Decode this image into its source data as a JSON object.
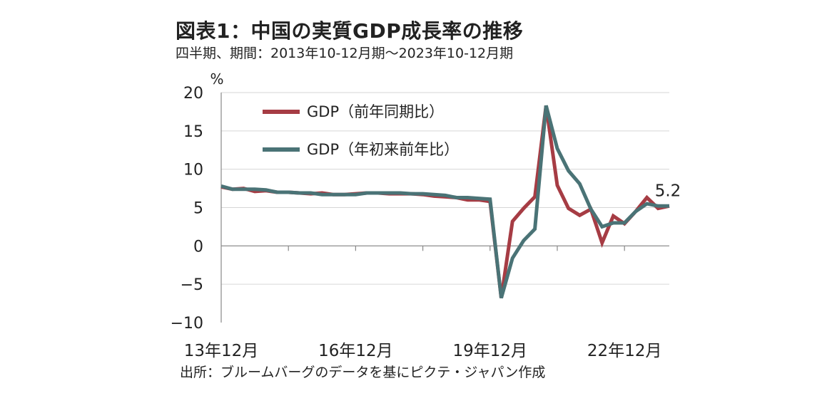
{
  "title": "図表1：中国の実質GDP成長率の推移",
  "subtitle": "四半期、期間：2013年10-12月期～2023年10-12月期",
  "source": "出所：ブルームバーグのデータを基にピクテ・ジャパン作成",
  "chart_data": {
    "type": "line",
    "yunit": "%",
    "ylim": [
      -10,
      20
    ],
    "yticks": [
      20,
      15,
      10,
      5,
      0,
      -5,
      -10
    ],
    "ytick_labels": [
      "20",
      "15",
      "10",
      "5",
      "0",
      "−5",
      "−10"
    ],
    "x": [
      "13Q4",
      "14Q1",
      "14Q2",
      "14Q3",
      "14Q4",
      "15Q1",
      "15Q2",
      "15Q3",
      "15Q4",
      "16Q1",
      "16Q2",
      "16Q3",
      "16Q4",
      "17Q1",
      "17Q2",
      "17Q3",
      "17Q4",
      "18Q1",
      "18Q2",
      "18Q3",
      "18Q4",
      "19Q1",
      "19Q2",
      "19Q3",
      "19Q4",
      "20Q1",
      "20Q2",
      "20Q3",
      "20Q4",
      "21Q1",
      "21Q2",
      "21Q3",
      "21Q4",
      "22Q1",
      "22Q2",
      "22Q3",
      "22Q4",
      "23Q1",
      "23Q2",
      "23Q3",
      "23Q4"
    ],
    "xtick_labels": [
      {
        "index": 0,
        "label": "13年12月"
      },
      {
        "index": 12,
        "label": "16年12月"
      },
      {
        "index": 24,
        "label": "19年12月"
      },
      {
        "index": 36,
        "label": "22年12月"
      }
    ],
    "grid": "horizontal",
    "legend_position": "top-left",
    "series": [
      {
        "name": "GDP（前年同期比）",
        "color": "#a63c44",
        "values": [
          7.7,
          7.4,
          7.5,
          7.1,
          7.2,
          7.0,
          7.0,
          6.9,
          6.8,
          6.9,
          6.7,
          6.7,
          6.8,
          6.9,
          6.9,
          6.8,
          6.8,
          6.8,
          6.7,
          6.5,
          6.4,
          6.3,
          6.0,
          6.0,
          5.8,
          -6.8,
          3.2,
          4.9,
          6.4,
          18.3,
          7.9,
          4.9,
          4.0,
          4.8,
          0.4,
          3.9,
          2.9,
          4.5,
          6.3,
          4.9,
          5.2
        ]
      },
      {
        "name": "GDP（年初来前年比）",
        "color": "#4a7376",
        "values": [
          7.8,
          7.4,
          7.4,
          7.4,
          7.3,
          7.0,
          7.0,
          6.9,
          6.9,
          6.7,
          6.7,
          6.7,
          6.7,
          6.9,
          6.9,
          6.9,
          6.9,
          6.8,
          6.8,
          6.7,
          6.6,
          6.3,
          6.3,
          6.2,
          6.1,
          -6.8,
          -1.6,
          0.7,
          2.2,
          18.3,
          12.7,
          9.8,
          8.1,
          4.8,
          2.5,
          3.0,
          3.0,
          4.5,
          5.5,
          5.2,
          5.2
        ]
      }
    ],
    "annotations": [
      {
        "text": "5.2",
        "index": 40,
        "value": 5.2
      }
    ]
  }
}
